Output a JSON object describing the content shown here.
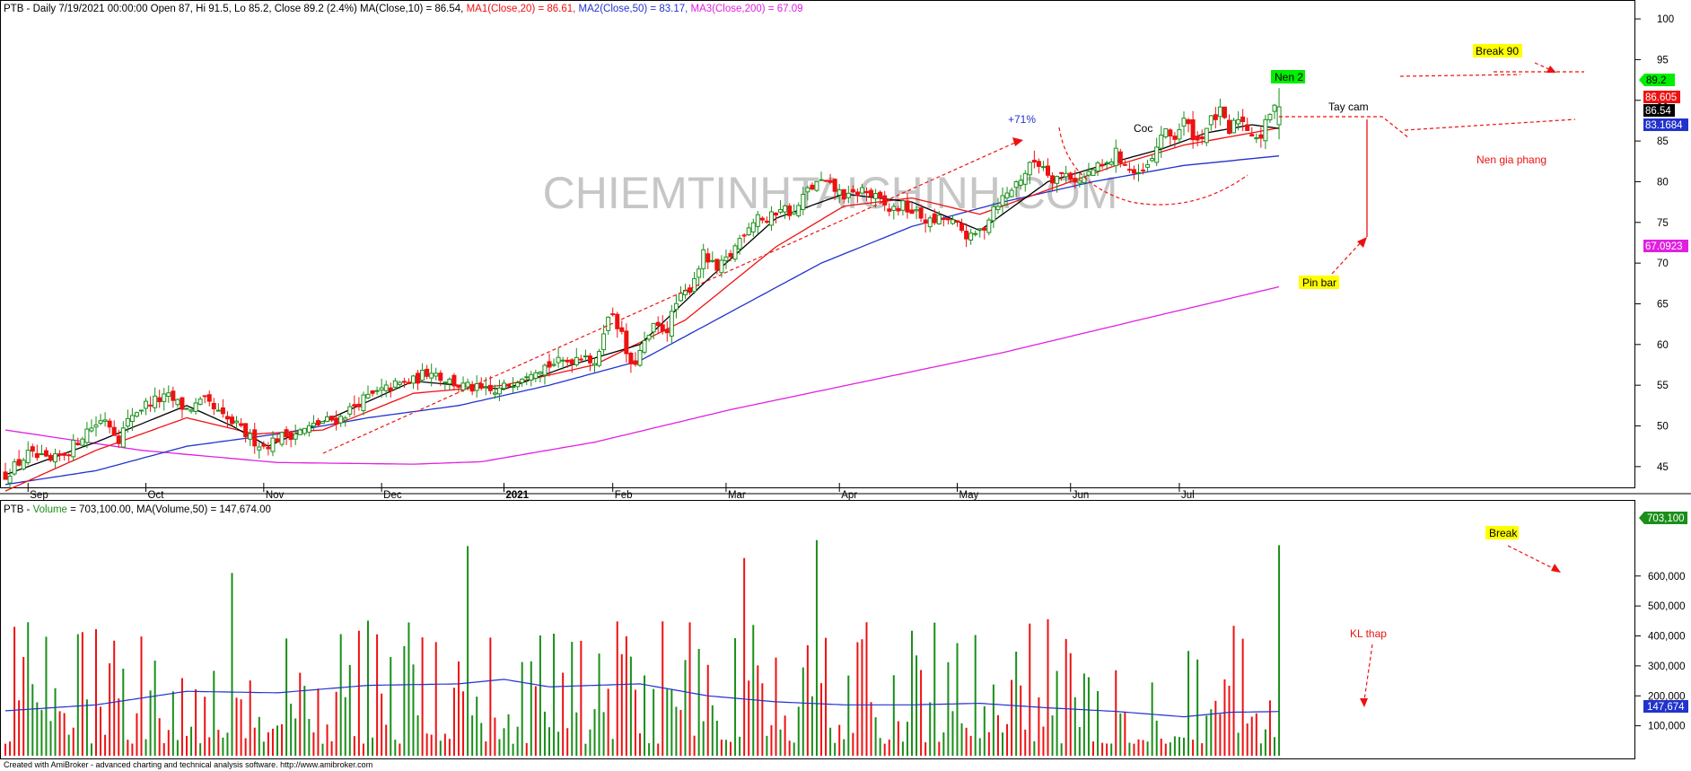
{
  "colors": {
    "up": "#1a8f1a",
    "down": "#ee1111",
    "ma10": "#000000",
    "ma20": "#ee1111",
    "ma50": "#2233cc",
    "ma200": "#e020e0",
    "annotation": "#ee1111",
    "label_yellow": "#ffff00",
    "label_green": "#00ee00",
    "axis": "#000000",
    "grid": "#d0d0d0"
  },
  "header": {
    "price_prefix": "PTB - Daily 7/19/2021 00:00:00 Open 87, Hi 91.5, Lo 85.2, Close 89.2 (2.4%) MA(Close,10) = 86.54, ",
    "ma1": "MA1(Close,20) = 86.61, ",
    "ma2": "MA2(Close,50) = 83.17, ",
    "ma3": "MA3(Close,200) = 67.09",
    "volume_prefix": "PTB - ",
    "volume_label": "Volume",
    "volume_mid": " = 703,100.00, ",
    "volume_ma": "MA(Volume,50) = 147,674.00"
  },
  "watermark": "CHIEMTINHTAICHINH.COM",
  "footer": "Created with AmiBroker - advanced charting and technical analysis software. http://www.amibroker.com",
  "annotations": {
    "pct": "+71%",
    "coc": "Coc",
    "nen2": "Nen 2",
    "taycam": "Tay cam",
    "break90": "Break 90",
    "nengiaphang": "Nen gia phang",
    "pinbar": "Pin bar",
    "break": "Break",
    "klthap": "KL thap"
  },
  "price_badges": {
    "close": "89.2",
    "ma20": "86.605",
    "ma10": "86.54",
    "ma50": "83.1684",
    "ma200": "67.0923"
  },
  "volume_badges": {
    "volume": "703,100",
    "ma": "147,674"
  },
  "chart_data": {
    "type": "candlestick",
    "ticker": "PTB",
    "x_ticks": [
      "Sep",
      "Oct",
      "Nov",
      "Dec",
      "2021",
      "Feb",
      "Mar",
      "Apr",
      "May",
      "Jun",
      "Jul"
    ],
    "price_axis": {
      "ylim": [
        43,
        101
      ],
      "ticks": [
        "45",
        "50",
        "55",
        "60",
        "65",
        "70",
        "75",
        "80",
        "85",
        "90",
        "95",
        "100"
      ]
    },
    "volume_axis": {
      "ylim": [
        0,
        800000
      ],
      "ticks": [
        "100,000",
        "200,000",
        "300,000",
        "400,000",
        "500,000",
        "600,000"
      ]
    },
    "last_bar": {
      "date": "7/19/2021",
      "open": 87,
      "high": 91.5,
      "low": 85.2,
      "close": 89.2,
      "change_pct": 2.4,
      "volume": 703100
    },
    "series": [
      {
        "name": "MA(Close,10)",
        "last": 86.54
      },
      {
        "name": "MA1(Close,20)",
        "last": 86.61
      },
      {
        "name": "MA2(Close,50)",
        "last": 83.17
      },
      {
        "name": "MA3(Close,200)",
        "last": 67.09
      },
      {
        "name": "MA(Volume,50)",
        "last": 147674
      }
    ],
    "close_path": [
      [
        0,
        44
      ],
      [
        5,
        46.5
      ],
      [
        10,
        45.5
      ],
      [
        14,
        47
      ],
      [
        18,
        49.5
      ],
      [
        22,
        51
      ],
      [
        25,
        48.5
      ],
      [
        28,
        51.5
      ],
      [
        32,
        53
      ],
      [
        36,
        53.5
      ],
      [
        40,
        52
      ],
      [
        44,
        53
      ],
      [
        48,
        51
      ],
      [
        51,
        50
      ],
      [
        54,
        48.5
      ],
      [
        57,
        47.5
      ],
      [
        60,
        48.5
      ],
      [
        63,
        49
      ],
      [
        66,
        49.5
      ],
      [
        70,
        50.5
      ],
      [
        74,
        51
      ],
      [
        78,
        53
      ],
      [
        82,
        54
      ],
      [
        86,
        55
      ],
      [
        90,
        55.5
      ],
      [
        94,
        57
      ],
      [
        96,
        56
      ],
      [
        100,
        55
      ],
      [
        104,
        54.5
      ],
      [
        108,
        54
      ],
      [
        112,
        55.5
      ],
      [
        116,
        57
      ],
      [
        120,
        57.5
      ],
      [
        124,
        58
      ],
      [
        128,
        59
      ],
      [
        130,
        57
      ],
      [
        132,
        62
      ],
      [
        134,
        64
      ],
      [
        136,
        61
      ],
      [
        138,
        57
      ],
      [
        140,
        59
      ],
      [
        143,
        62
      ],
      [
        146,
        62
      ],
      [
        148,
        65
      ],
      [
        151,
        67
      ],
      [
        154,
        71
      ],
      [
        157,
        69
      ],
      [
        160,
        71
      ],
      [
        163,
        74
      ],
      [
        166,
        76
      ],
      [
        168,
        75
      ],
      [
        171,
        77
      ],
      [
        174,
        76
      ],
      [
        177,
        79
      ],
      [
        180,
        80
      ],
      [
        183,
        79
      ],
      [
        186,
        78
      ],
      [
        189,
        79
      ],
      [
        192,
        78
      ],
      [
        195,
        76.5
      ],
      [
        198,
        77
      ],
      [
        201,
        76
      ],
      [
        204,
        75
      ],
      [
        207,
        75.5
      ],
      [
        210,
        74.5
      ],
      [
        213,
        73
      ],
      [
        216,
        74.5
      ],
      [
        218,
        77
      ],
      [
        221,
        78.5
      ],
      [
        224,
        80.5
      ],
      [
        227,
        82.5
      ],
      [
        229,
        82
      ],
      [
        231,
        80.5
      ],
      [
        234,
        81
      ],
      [
        237,
        80
      ],
      [
        240,
        81.5
      ],
      [
        243,
        82
      ],
      [
        245,
        83.5
      ],
      [
        248,
        81.5
      ],
      [
        250,
        80.5
      ],
      [
        253,
        82.5
      ],
      [
        255,
        86
      ],
      [
        258,
        85.5
      ],
      [
        260,
        87.5
      ],
      [
        263,
        85
      ],
      [
        266,
        87.5
      ],
      [
        268,
        88.5
      ],
      [
        270,
        86
      ],
      [
        272,
        88
      ],
      [
        275,
        86
      ],
      [
        277,
        85.5
      ],
      [
        279,
        88.5
      ],
      [
        281,
        89.2
      ]
    ],
    "ma_paths": {
      "ma10": [
        [
          0,
          44
        ],
        [
          20,
          48
        ],
        [
          40,
          52.5
        ],
        [
          50,
          50
        ],
        [
          58,
          47.5
        ],
        [
          70,
          50.5
        ],
        [
          90,
          55.5
        ],
        [
          100,
          55
        ],
        [
          110,
          54.5
        ],
        [
          125,
          57.5
        ],
        [
          140,
          60
        ],
        [
          155,
          68
        ],
        [
          170,
          75.5
        ],
        [
          185,
          78.5
        ],
        [
          200,
          77.5
        ],
        [
          215,
          74
        ],
        [
          230,
          80
        ],
        [
          245,
          82.5
        ],
        [
          255,
          84
        ],
        [
          265,
          86
        ],
        [
          275,
          87
        ],
        [
          281,
          86.54
        ]
      ],
      "ma20": [
        [
          0,
          42
        ],
        [
          20,
          47
        ],
        [
          40,
          51
        ],
        [
          55,
          49
        ],
        [
          70,
          49.5
        ],
        [
          90,
          54
        ],
        [
          110,
          55
        ],
        [
          130,
          57.5
        ],
        [
          150,
          63
        ],
        [
          170,
          72
        ],
        [
          185,
          77
        ],
        [
          200,
          78
        ],
        [
          215,
          76
        ],
        [
          230,
          79
        ],
        [
          245,
          82
        ],
        [
          260,
          84.5
        ],
        [
          281,
          86.61
        ]
      ],
      "ma50": [
        [
          0,
          42.8
        ],
        [
          20,
          44.5
        ],
        [
          40,
          47.5
        ],
        [
          60,
          49
        ],
        [
          80,
          51
        ],
        [
          100,
          52.5
        ],
        [
          120,
          55
        ],
        [
          140,
          58
        ],
        [
          160,
          64
        ],
        [
          180,
          70
        ],
        [
          200,
          74.5
        ],
        [
          220,
          77.5
        ],
        [
          240,
          80
        ],
        [
          260,
          82
        ],
        [
          281,
          83.17
        ]
      ],
      "ma200": [
        [
          0,
          49.5
        ],
        [
          30,
          47
        ],
        [
          60,
          45.5
        ],
        [
          90,
          45.3
        ],
        [
          105,
          45.6
        ],
        [
          130,
          48
        ],
        [
          160,
          52
        ],
        [
          190,
          55.5
        ],
        [
          220,
          59
        ],
        [
          250,
          63
        ],
        [
          281,
          67.09
        ]
      ]
    },
    "volume_ma_path": [
      [
        0,
        150000
      ],
      [
        20,
        170000
      ],
      [
        40,
        215000
      ],
      [
        60,
        210000
      ],
      [
        80,
        235000
      ],
      [
        100,
        240000
      ],
      [
        110,
        255000
      ],
      [
        120,
        230000
      ],
      [
        140,
        240000
      ],
      [
        155,
        200000
      ],
      [
        170,
        180000
      ],
      [
        185,
        170000
      ],
      [
        200,
        170000
      ],
      [
        215,
        175000
      ],
      [
        230,
        160000
      ],
      [
        245,
        148000
      ],
      [
        260,
        130000
      ],
      [
        270,
        145000
      ],
      [
        281,
        147674
      ]
    ],
    "volume_highlights": [
      {
        "bar": 50,
        "value": 610000
      },
      {
        "bar": 102,
        "value": 700000
      },
      {
        "bar": 163,
        "value": 660000
      },
      {
        "bar": 179,
        "value": 720000
      },
      {
        "bar": 281,
        "value": 703100
      }
    ]
  }
}
